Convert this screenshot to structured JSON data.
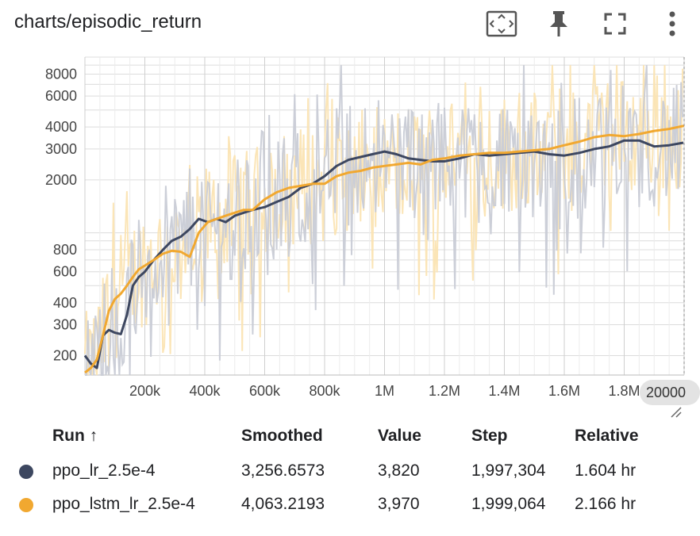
{
  "header": {
    "title": "charts/episodic_return"
  },
  "toolbar": {
    "fit_icon": "fit-domain-icon",
    "pin_icon": "pin-icon",
    "fullscreen_icon": "fullscreen-icon",
    "more_icon": "more-vert-icon"
  },
  "colors": {
    "series_dark": "#3d4760",
    "series_dark_raw": "#c9ccd6",
    "series_orange": "#f1a830",
    "series_orange_raw": "#fbe4b3",
    "grid": "#dcdcdc",
    "axis_text": "#444444"
  },
  "chart_data": {
    "type": "line",
    "title": "charts/episodic_return",
    "y_scale": "log",
    "ylim": [
      155,
      10000
    ],
    "xlim": [
      0,
      2000000
    ],
    "y_ticks": [
      200,
      300,
      400,
      600,
      800,
      2000,
      3000,
      4000,
      6000,
      8000
    ],
    "y_tick_labels": [
      "200",
      "300",
      "400",
      "600",
      "800",
      "2000",
      "3000",
      "4000",
      "6000",
      "8000"
    ],
    "x_ticks": [
      200000,
      400000,
      600000,
      800000,
      1000000,
      1200000,
      1400000,
      1600000,
      1800000
    ],
    "x_tick_labels": [
      "200k",
      "400k",
      "600k",
      "800k",
      "1M",
      "1.2M",
      "1.4M",
      "1.6M",
      "1.8M"
    ],
    "x_tooltip_label": "20000",
    "grid": true,
    "series": [
      {
        "name": "ppo_lr_2.5e-4",
        "smoothed": {
          "x": [
            0,
            20000,
            40000,
            60000,
            80000,
            100000,
            120000,
            140000,
            160000,
            180000,
            200000,
            230000,
            260000,
            290000,
            320000,
            350000,
            380000,
            410000,
            440000,
            470000,
            500000,
            530000,
            560000,
            600000,
            640000,
            680000,
            720000,
            760000,
            800000,
            840000,
            880000,
            920000,
            960000,
            1000000,
            1040000,
            1080000,
            1120000,
            1160000,
            1200000,
            1250000,
            1300000,
            1350000,
            1400000,
            1450000,
            1500000,
            1550000,
            1600000,
            1650000,
            1700000,
            1750000,
            1800000,
            1850000,
            1900000,
            1950000,
            1997304
          ],
          "y": [
            200,
            180,
            170,
            260,
            280,
            270,
            265,
            340,
            500,
            560,
            600,
            700,
            800,
            900,
            950,
            1050,
            1200,
            1150,
            1200,
            1150,
            1250,
            1300,
            1350,
            1400,
            1500,
            1600,
            1800,
            1900,
            2100,
            2400,
            2600,
            2700,
            2800,
            2900,
            2800,
            2650,
            2600,
            2550,
            2550,
            2650,
            2800,
            2750,
            2800,
            2850,
            2900,
            2800,
            2750,
            2850,
            3000,
            3100,
            3350,
            3350,
            3100,
            3150,
            3256
          ]
        },
        "last": {
          "smoothed": "3,256.6573",
          "value": "3,820",
          "step": "1,997,304",
          "relative": "1.604 hr"
        }
      },
      {
        "name": "ppo_lstm_lr_2.5e-4",
        "smoothed": {
          "x": [
            0,
            20000,
            40000,
            60000,
            80000,
            100000,
            120000,
            140000,
            160000,
            180000,
            200000,
            230000,
            260000,
            290000,
            320000,
            350000,
            380000,
            410000,
            440000,
            470000,
            500000,
            530000,
            560000,
            600000,
            640000,
            680000,
            720000,
            760000,
            800000,
            840000,
            880000,
            920000,
            960000,
            1000000,
            1040000,
            1080000,
            1120000,
            1160000,
            1200000,
            1250000,
            1300000,
            1350000,
            1400000,
            1450000,
            1500000,
            1550000,
            1600000,
            1650000,
            1700000,
            1750000,
            1800000,
            1850000,
            1900000,
            1950000,
            1999064
          ],
          "y": [
            160,
            170,
            190,
            260,
            360,
            420,
            450,
            500,
            560,
            620,
            650,
            700,
            760,
            790,
            780,
            730,
            1000,
            1150,
            1200,
            1250,
            1300,
            1350,
            1350,
            1550,
            1700,
            1800,
            1850,
            1900,
            1900,
            2100,
            2200,
            2250,
            2350,
            2400,
            2450,
            2500,
            2450,
            2600,
            2650,
            2750,
            2800,
            2850,
            2850,
            2900,
            2950,
            3000,
            3150,
            3300,
            3500,
            3600,
            3550,
            3650,
            3800,
            3900,
            4063
          ]
        },
        "last": {
          "smoothed": "4,063.2193",
          "value": "3,970",
          "step": "1,999,064",
          "relative": "2.166 hr"
        }
      }
    ]
  },
  "table": {
    "headers": {
      "run": "Run ↑",
      "smoothed": "Smoothed",
      "value": "Value",
      "step": "Step",
      "relative": "Relative"
    },
    "rows": [
      {
        "color": "#3d4760",
        "run": "ppo_lr_2.5e-4",
        "smoothed": "3,256.6573",
        "value": "3,820",
        "step": "1,997,304",
        "relative": "1.604 hr"
      },
      {
        "color": "#f1a830",
        "run": "ppo_lstm_lr_2.5e-4",
        "smoothed": "4,063.2193",
        "value": "3,970",
        "step": "1,999,064",
        "relative": "2.166 hr"
      }
    ]
  }
}
